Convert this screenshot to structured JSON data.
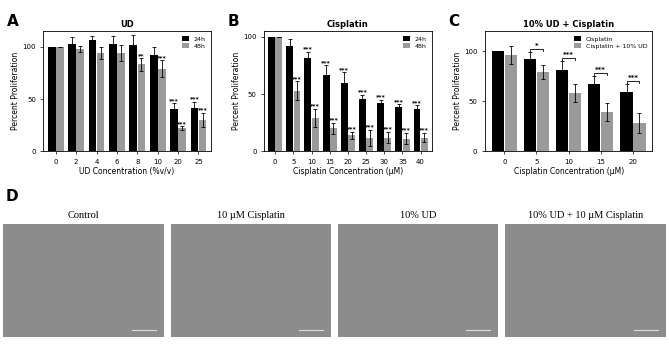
{
  "chart_data": [
    {
      "panel": "A",
      "type": "bar",
      "title": "UD",
      "x_label": "UD Concentration (%v/v)",
      "y_label": "Percent Proliferation",
      "categories": [
        "0",
        "2",
        "4",
        "6",
        "8",
        "10",
        "20",
        "25"
      ],
      "series": [
        {
          "name": "24h",
          "color": "#000000",
          "values": [
            100,
            103,
            106,
            103,
            102,
            92,
            40,
            41
          ],
          "errors": [
            0,
            6,
            4,
            7,
            9,
            8,
            6,
            6
          ],
          "significance": [
            null,
            null,
            null,
            null,
            null,
            null,
            "***",
            "***"
          ]
        },
        {
          "name": "48h",
          "color": "#9a9a9a",
          "values": [
            100,
            98,
            94,
            94,
            83,
            79,
            22,
            30
          ],
          "errors": [
            0,
            3,
            6,
            8,
            6,
            8,
            2,
            7
          ],
          "significance": [
            null,
            null,
            null,
            null,
            "**",
            "***",
            "***",
            "***"
          ]
        }
      ],
      "ylim": [
        0,
        115
      ],
      "yticks": [
        0,
        50,
        100
      ],
      "legend": "upper right"
    },
    {
      "panel": "B",
      "type": "bar",
      "title": "Cisplatin",
      "x_label": "Cisplatin Concentration (µM)",
      "y_label": "Percent Proliferation",
      "categories": [
        "0",
        "5",
        "10",
        "15",
        "20",
        "25",
        "30",
        "35",
        "40"
      ],
      "series": [
        {
          "name": "24h",
          "color": "#000000",
          "values": [
            100,
            92,
            81,
            67,
            60,
            46,
            42,
            39,
            37
          ],
          "errors": [
            0,
            6,
            6,
            8,
            9,
            3,
            3,
            2,
            3
          ],
          "significance": [
            null,
            null,
            "***",
            "***",
            "***",
            "***",
            "***",
            "***",
            "***"
          ]
        },
        {
          "name": "48h",
          "color": "#9a9a9a",
          "values": [
            100,
            53,
            29,
            20,
            14,
            12,
            12,
            11,
            12
          ],
          "errors": [
            0,
            8,
            8,
            5,
            3,
            7,
            5,
            5,
            4
          ],
          "significance": [
            null,
            "***",
            "***",
            "***",
            "***",
            "***",
            "***",
            "***",
            "***"
          ]
        }
      ],
      "ylim": [
        0,
        105
      ],
      "yticks": [
        0,
        50,
        100
      ],
      "legend": "upper right"
    },
    {
      "panel": "C",
      "type": "bar",
      "title": "10% UD + Cisplatin",
      "x_label": "Cisplatin Concentration (µM)",
      "y_label": "Percent Proliferation",
      "categories": [
        "0",
        "5",
        "10",
        "15",
        "20"
      ],
      "series": [
        {
          "name": "Cisplatin",
          "color": "#000000",
          "values": [
            100,
            92,
            81,
            67,
            59
          ],
          "errors": [
            0,
            7,
            9,
            8,
            8
          ]
        },
        {
          "name": "Cisplatin + 10% UD",
          "color": "#9a9a9a",
          "values": [
            96,
            79,
            58,
            39,
            28
          ],
          "errors": [
            9,
            7,
            9,
            9,
            10
          ]
        }
      ],
      "comparisons": [
        null,
        "*",
        "***",
        "***",
        "***"
      ],
      "ylim": [
        0,
        120
      ],
      "yticks": [
        0,
        50,
        100
      ],
      "legend": "upper right"
    }
  ],
  "panel_d": {
    "panel": "D",
    "images": [
      "Control",
      "10 µM Cisplatin",
      "10% UD",
      "10% UD + 10 µM Cisplatin"
    ]
  }
}
